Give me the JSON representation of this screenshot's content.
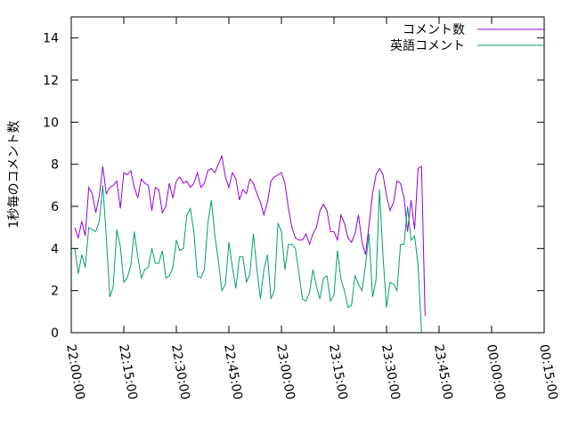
{
  "chart_data": {
    "type": "line",
    "ylabel": "1秒毎のコメント数",
    "ylim": [
      0,
      15
    ],
    "yticks": [
      0,
      2,
      4,
      6,
      8,
      10,
      12,
      14
    ],
    "xlim": [
      "22:00:00",
      "00:15:00"
    ],
    "xtick_labels": [
      "22:00:00",
      "22:15:00",
      "22:30:00",
      "22:45:00",
      "23:00:00",
      "23:15:00",
      "23:30:00",
      "23:45:00",
      "00:00:00",
      "00:15:00"
    ],
    "grid": false,
    "legend_position": "top-right",
    "series": [
      {
        "name": "コメント数",
        "color": "#9400d3",
        "points": [
          [
            "22:01:00",
            5.0
          ],
          [
            "22:02:00",
            4.5
          ],
          [
            "22:03:00",
            5.3
          ],
          [
            "22:04:00",
            4.6
          ],
          [
            "22:05:00",
            6.9
          ],
          [
            "22:06:00",
            6.6
          ],
          [
            "22:07:00",
            5.7
          ],
          [
            "22:08:00",
            6.5
          ],
          [
            "22:09:00",
            7.9
          ],
          [
            "22:10:00",
            6.6
          ],
          [
            "22:11:00",
            6.9
          ],
          [
            "22:12:00",
            7.0
          ],
          [
            "22:13:00",
            7.2
          ],
          [
            "22:14:00",
            5.9
          ],
          [
            "22:15:00",
            7.6
          ],
          [
            "22:16:00",
            7.5
          ],
          [
            "22:17:00",
            7.7
          ],
          [
            "22:18:00",
            6.9
          ],
          [
            "22:19:00",
            6.4
          ],
          [
            "22:20:00",
            7.3
          ],
          [
            "22:21:00",
            7.1
          ],
          [
            "22:22:00",
            7.0
          ],
          [
            "22:23:00",
            5.8
          ],
          [
            "22:24:00",
            6.9
          ],
          [
            "22:25:00",
            6.8
          ],
          [
            "22:26:00",
            5.7
          ],
          [
            "22:27:00",
            6.0
          ],
          [
            "22:28:00",
            7.1
          ],
          [
            "22:29:00",
            6.4
          ],
          [
            "22:30:00",
            7.2
          ],
          [
            "22:31:00",
            7.4
          ],
          [
            "22:32:00",
            7.1
          ],
          [
            "22:33:00",
            7.2
          ],
          [
            "22:34:00",
            6.9
          ],
          [
            "22:35:00",
            7.1
          ],
          [
            "22:36:00",
            7.6
          ],
          [
            "22:37:00",
            6.9
          ],
          [
            "22:38:00",
            7.1
          ],
          [
            "22:39:00",
            7.7
          ],
          [
            "22:40:00",
            7.8
          ],
          [
            "22:41:00",
            7.6
          ],
          [
            "22:42:00",
            8.0
          ],
          [
            "22:43:00",
            8.4
          ],
          [
            "22:44:00",
            7.4
          ],
          [
            "22:45:00",
            6.9
          ],
          [
            "22:46:00",
            7.6
          ],
          [
            "22:47:00",
            7.3
          ],
          [
            "22:48:00",
            6.3
          ],
          [
            "22:49:00",
            6.8
          ],
          [
            "22:50:00",
            6.6
          ],
          [
            "22:51:00",
            7.3
          ],
          [
            "22:52:00",
            7.1
          ],
          [
            "22:53:00",
            6.6
          ],
          [
            "22:54:00",
            6.2
          ],
          [
            "22:55:00",
            5.6
          ],
          [
            "22:56:00",
            6.2
          ],
          [
            "22:57:00",
            7.2
          ],
          [
            "22:58:00",
            7.4
          ],
          [
            "22:59:00",
            7.5
          ],
          [
            "23:00:00",
            7.6
          ],
          [
            "23:01:00",
            7.1
          ],
          [
            "23:02:00",
            5.9
          ],
          [
            "23:03:00",
            5.0
          ],
          [
            "23:04:00",
            4.5
          ],
          [
            "23:05:00",
            4.4
          ],
          [
            "23:06:00",
            4.4
          ],
          [
            "23:07:00",
            4.7
          ],
          [
            "23:08:00",
            4.2
          ],
          [
            "23:09:00",
            4.7
          ],
          [
            "23:10:00",
            5.0
          ],
          [
            "23:11:00",
            5.8
          ],
          [
            "23:12:00",
            6.1
          ],
          [
            "23:13:00",
            5.8
          ],
          [
            "23:14:00",
            4.8
          ],
          [
            "23:15:00",
            4.8
          ],
          [
            "23:16:00",
            4.4
          ],
          [
            "23:17:00",
            5.6
          ],
          [
            "23:18:00",
            5.2
          ],
          [
            "23:19:00",
            4.5
          ],
          [
            "23:20:00",
            4.3
          ],
          [
            "23:21:00",
            4.7
          ],
          [
            "23:22:00",
            5.6
          ],
          [
            "23:23:00",
            4.3
          ],
          [
            "23:24:00",
            3.7
          ],
          [
            "23:25:00",
            5.1
          ],
          [
            "23:26:00",
            6.6
          ],
          [
            "23:27:00",
            7.5
          ],
          [
            "23:28:00",
            7.8
          ],
          [
            "23:29:00",
            7.5
          ],
          [
            "23:30:00",
            6.5
          ],
          [
            "23:31:00",
            5.8
          ],
          [
            "23:32:00",
            6.2
          ],
          [
            "23:33:00",
            7.2
          ],
          [
            "23:34:00",
            7.1
          ],
          [
            "23:35:00",
            6.4
          ],
          [
            "23:36:00",
            4.8
          ],
          [
            "23:37:00",
            6.3
          ],
          [
            "23:38:00",
            4.9
          ],
          [
            "23:39:00",
            7.8
          ],
          [
            "23:40:00",
            7.9
          ],
          [
            "23:41:00",
            0.8
          ]
        ]
      },
      {
        "name": "英語コメント",
        "color": "#009e73",
        "points": [
          [
            "22:01:00",
            4.0
          ],
          [
            "22:02:00",
            2.8
          ],
          [
            "22:03:00",
            3.7
          ],
          [
            "22:04:00",
            3.1
          ],
          [
            "22:05:00",
            5.0
          ],
          [
            "22:06:00",
            4.9
          ],
          [
            "22:07:00",
            4.8
          ],
          [
            "22:08:00",
            5.3
          ],
          [
            "22:09:00",
            7.0
          ],
          [
            "22:10:00",
            4.6
          ],
          [
            "22:11:00",
            1.7
          ],
          [
            "22:12:00",
            2.2
          ],
          [
            "22:13:00",
            4.9
          ],
          [
            "22:14:00",
            4.1
          ],
          [
            "22:15:00",
            2.4
          ],
          [
            "22:16:00",
            2.6
          ],
          [
            "22:17:00",
            3.2
          ],
          [
            "22:18:00",
            4.8
          ],
          [
            "22:19:00",
            3.6
          ],
          [
            "22:20:00",
            2.6
          ],
          [
            "22:21:00",
            3.0
          ],
          [
            "22:22:00",
            3.1
          ],
          [
            "22:23:00",
            4.0
          ],
          [
            "22:24:00",
            3.3
          ],
          [
            "22:25:00",
            3.3
          ],
          [
            "22:26:00",
            3.9
          ],
          [
            "22:27:00",
            2.6
          ],
          [
            "22:28:00",
            2.7
          ],
          [
            "22:29:00",
            3.1
          ],
          [
            "22:30:00",
            4.4
          ],
          [
            "22:31:00",
            3.9
          ],
          [
            "22:32:00",
            4.0
          ],
          [
            "22:33:00",
            5.6
          ],
          [
            "22:34:00",
            5.9
          ],
          [
            "22:35:00",
            4.8
          ],
          [
            "22:36:00",
            2.7
          ],
          [
            "22:37:00",
            2.6
          ],
          [
            "22:38:00",
            3.0
          ],
          [
            "22:39:00",
            5.2
          ],
          [
            "22:40:00",
            6.3
          ],
          [
            "22:41:00",
            4.6
          ],
          [
            "22:42:00",
            3.4
          ],
          [
            "22:43:00",
            2.0
          ],
          [
            "22:44:00",
            2.3
          ],
          [
            "22:45:00",
            4.3
          ],
          [
            "22:46:00",
            3.1
          ],
          [
            "22:47:00",
            2.1
          ],
          [
            "22:48:00",
            3.6
          ],
          [
            "22:49:00",
            3.6
          ],
          [
            "22:50:00",
            2.4
          ],
          [
            "22:51:00",
            2.8
          ],
          [
            "22:52:00",
            4.7
          ],
          [
            "22:53:00",
            3.0
          ],
          [
            "22:54:00",
            1.6
          ],
          [
            "22:55:00",
            3.0
          ],
          [
            "22:56:00",
            3.7
          ],
          [
            "22:57:00",
            1.6
          ],
          [
            "22:58:00",
            2.0
          ],
          [
            "22:59:00",
            5.2
          ],
          [
            "23:00:00",
            4.8
          ],
          [
            "23:01:00",
            3.0
          ],
          [
            "23:02:00",
            4.2
          ],
          [
            "23:03:00",
            4.2
          ],
          [
            "23:04:00",
            4.0
          ],
          [
            "23:05:00",
            2.8
          ],
          [
            "23:06:00",
            1.6
          ],
          [
            "23:07:00",
            1.5
          ],
          [
            "23:08:00",
            1.9
          ],
          [
            "23:09:00",
            3.0
          ],
          [
            "23:10:00",
            2.2
          ],
          [
            "23:11:00",
            1.6
          ],
          [
            "23:12:00",
            2.6
          ],
          [
            "23:13:00",
            2.7
          ],
          [
            "23:14:00",
            1.5
          ],
          [
            "23:15:00",
            1.8
          ],
          [
            "23:16:00",
            3.9
          ],
          [
            "23:17:00",
            2.5
          ],
          [
            "23:18:00",
            2.0
          ],
          [
            "23:19:00",
            1.2
          ],
          [
            "23:20:00",
            1.3
          ],
          [
            "23:21:00",
            2.7
          ],
          [
            "23:22:00",
            2.3
          ],
          [
            "23:23:00",
            2.0
          ],
          [
            "23:24:00",
            3.2
          ],
          [
            "23:25:00",
            4.7
          ],
          [
            "23:26:00",
            1.7
          ],
          [
            "23:27:00",
            2.5
          ],
          [
            "23:28:00",
            6.8
          ],
          [
            "23:29:00",
            3.6
          ],
          [
            "23:30:00",
            1.2
          ],
          [
            "23:31:00",
            2.4
          ],
          [
            "23:32:00",
            2.3
          ],
          [
            "23:33:00",
            2.0
          ],
          [
            "23:34:00",
            4.2
          ],
          [
            "23:35:00",
            4.2
          ],
          [
            "23:36:00",
            6.0
          ],
          [
            "23:37:00",
            4.4
          ],
          [
            "23:38:00",
            4.6
          ],
          [
            "23:39:00",
            3.2
          ],
          [
            "23:40:00",
            0.0
          ]
        ]
      }
    ]
  }
}
